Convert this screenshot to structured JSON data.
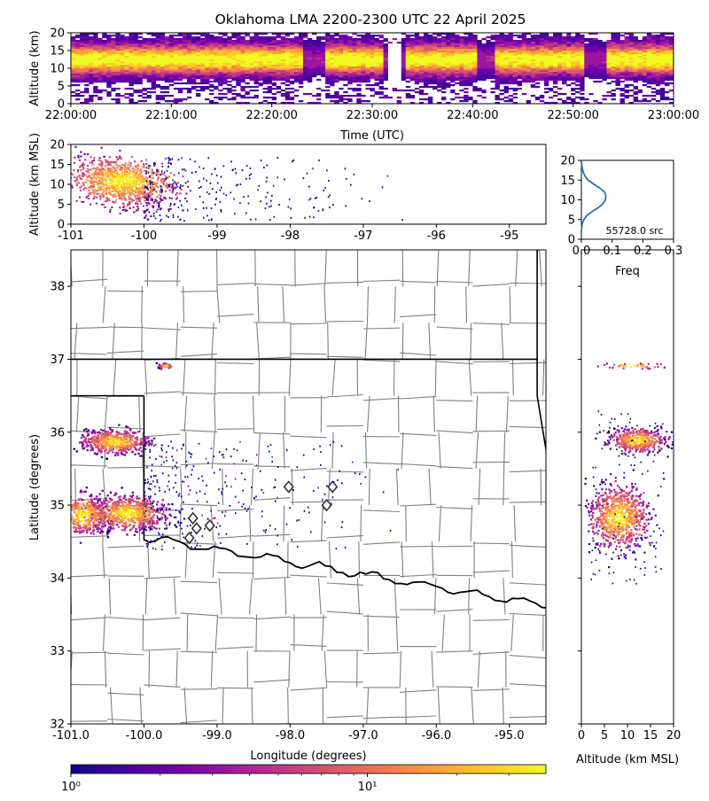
{
  "title": "Oklahoma LMA 2200-2300 UTC 22 April 2025",
  "colors": {
    "plasma": [
      "#0d0887",
      "#46039f",
      "#7201a8",
      "#9c179e",
      "#bd3786",
      "#d8576b",
      "#ed7953",
      "#fb9f3a",
      "#fdca26",
      "#f0f921"
    ],
    "county_line": "#808080",
    "state_line": "#000000",
    "hist_line": "#1f77b4",
    "station_marker": "#333333"
  },
  "chart_data": [
    {
      "id": "time-height",
      "type": "heatmap",
      "xlabel": "Time (UTC)",
      "ylabel": "Altitude (km)",
      "xticks": [
        "22:00:00",
        "22:10:00",
        "22:20:00",
        "22:30:00",
        "22:40:00",
        "22:50:00",
        "23:00:00"
      ],
      "yticks": [
        "0",
        "5",
        "10",
        "15",
        "20"
      ],
      "xlim": [
        "22:00:00",
        "23:00:00"
      ],
      "ylim": [
        0,
        20
      ],
      "core_altitude_km": [
        6,
        17
      ],
      "activity_gaps": [
        "22:24:00",
        "22:32:00",
        "22:41:00",
        "22:52:00"
      ]
    },
    {
      "id": "lon-height",
      "type": "heatmap",
      "ylabel": "Altitude (km MSL)",
      "xticks": [
        "-101",
        "-100",
        "-99",
        "-98",
        "-97",
        "-96",
        "-95"
      ],
      "yticks": [
        "0",
        "5",
        "10",
        "15",
        "20"
      ],
      "xlim": [
        -101,
        -94.5
      ],
      "ylim": [
        0,
        20
      ]
    },
    {
      "id": "altitude-histogram",
      "type": "line",
      "xlabel": "Freq",
      "xticks": [
        "0.0",
        "0.1",
        "0.2",
        "0.3"
      ],
      "yticks": [
        "0",
        "5",
        "10",
        "15",
        "20"
      ],
      "xlim": [
        0,
        0.3
      ],
      "ylim": [
        0,
        20
      ],
      "annotation": "55728.0 src",
      "series": [
        {
          "x": [
            0.0,
            0.003,
            0.008,
            0.018,
            0.035,
            0.055,
            0.07,
            0.078,
            0.08,
            0.075,
            0.06,
            0.04,
            0.022,
            0.012,
            0.006,
            0.003,
            0.001,
            0.0
          ],
          "y": [
            2,
            4,
            5,
            6,
            7,
            8,
            9,
            10,
            11,
            12,
            13,
            14,
            15,
            16,
            17,
            18,
            19,
            20
          ]
        }
      ]
    },
    {
      "id": "plan-view",
      "type": "heatmap",
      "xlabel": "Longitude (degrees)",
      "ylabel": "Latitude (degrees)",
      "xticks": [
        "-101.0",
        "-100.0",
        "-99.0",
        "-98.0",
        "-97.0",
        "-96.0",
        "-95.0"
      ],
      "yticks": [
        "32",
        "33",
        "34",
        "35",
        "36",
        "37",
        "38"
      ],
      "xlim": [
        -101,
        -94.5
      ],
      "ylim": [
        32,
        38.5
      ],
      "stations": [
        {
          "lon": -99.38,
          "lat": 34.55
        },
        {
          "lon": -99.28,
          "lat": 34.68
        },
        {
          "lon": -99.33,
          "lat": 34.82
        },
        {
          "lon": -99.1,
          "lat": 34.72
        },
        {
          "lon": -98.02,
          "lat": 35.25
        },
        {
          "lon": -97.5,
          "lat": 35.0
        },
        {
          "lon": -97.42,
          "lat": 35.25
        }
      ]
    },
    {
      "id": "height-lat",
      "type": "heatmap",
      "xlabel": "Altitude (km MSL)",
      "xticks": [
        "0",
        "5",
        "10",
        "15",
        "20"
      ],
      "xlim": [
        0,
        20
      ],
      "ylim": [
        32,
        38.5
      ]
    },
    {
      "id": "colorbar",
      "type": "heatmap",
      "scale": "log",
      "ticks": [
        "1",
        "10"
      ],
      "tick_labels": [
        "10⁰",
        "10¹"
      ],
      "range": [
        1,
        40
      ]
    }
  ]
}
